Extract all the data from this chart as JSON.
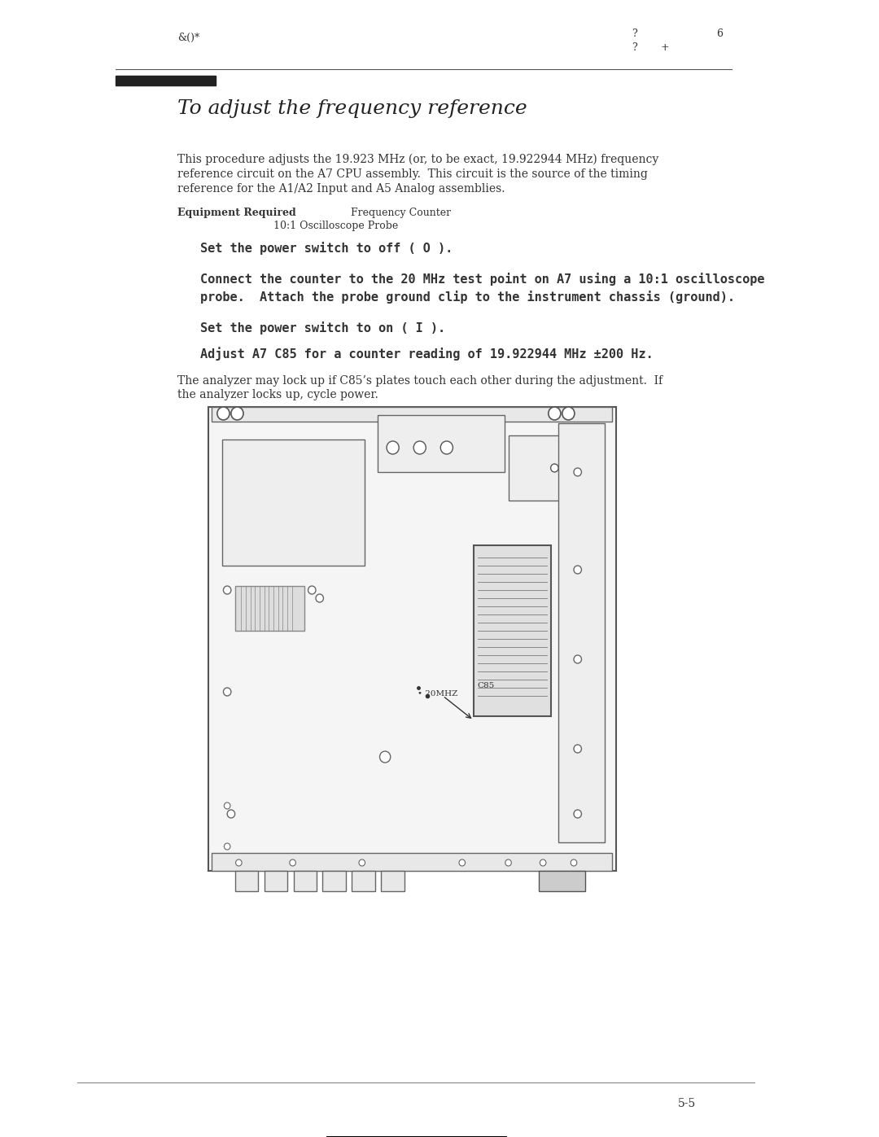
{
  "page_bg": "#ffffff",
  "header_left": "&()*",
  "header_right1": "?",
  "header_right2": "6",
  "header_right3": "?",
  "header_right4": "+",
  "title": "To adjust the frequency reference",
  "para1": "This procedure adjusts the 19.923 MHz (or, to be exact, 19.922944 MHz) frequency\nreference circuit on the A7 CPU assembly.  This circuit is the source of the timing\nreference for the A1/A2 Input and A5 Analog assemblies.",
  "equip_label": "Equipment Required",
  "equip_val1": "Frequency Counter",
  "equip_val2": "10:1 Oscilloscope Probe",
  "step1": "Set the power switch to off ( O ).",
  "step2_line1": "Connect the counter to the 20 MHz test point on A7 using a 10:1 oscilloscope",
  "step2_line2": "probe.  Attach the probe ground clip to the instrument chassis (ground).",
  "step3": "Set the power switch to on ( I ).",
  "step4": "Adjust A7 C85 for a counter reading of 19.922944 MHz ±200 Hz.",
  "para2_line1": "The analyzer may lock up if C85’s plates touch each other during the adjustment.  If",
  "para2_line2": "the analyzer locks up, cycle power.",
  "footer_page": "5-5",
  "line_color": "#333333",
  "text_color": "#333333",
  "title_color": "#222222",
  "bold_color": "#111111"
}
